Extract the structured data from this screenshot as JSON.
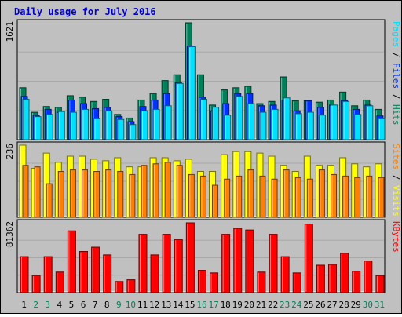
{
  "chart_data": [
    {
      "type": "bar",
      "title": "Daily usage for July 2016",
      "panel": "top",
      "ymax_label": "1621",
      "categories": [
        "1",
        "2",
        "3",
        "4",
        "5",
        "6",
        "7",
        "8",
        "9",
        "10",
        "11",
        "12",
        "13",
        "14",
        "15",
        "16",
        "17",
        "18",
        "19",
        "20",
        "21",
        "22",
        "23",
        "24",
        "25",
        "26",
        "27",
        "28",
        "29",
        "30",
        "31"
      ],
      "weekend_days": [
        "2",
        "3",
        "9",
        "10",
        "16",
        "17",
        "23",
        "24",
        "30",
        "31"
      ],
      "series": [
        {
          "name": "Hits",
          "color": "#00805A",
          "values": [
            720,
            380,
            460,
            450,
            610,
            590,
            530,
            560,
            350,
            300,
            550,
            640,
            820,
            900,
            1621,
            900,
            480,
            690,
            720,
            740,
            500,
            530,
            870,
            540,
            540,
            520,
            550,
            660,
            470,
            550,
            420
          ]
        },
        {
          "name": "Files",
          "color": "#0033FF",
          "values": [
            600,
            340,
            420,
            380,
            550,
            500,
            430,
            450,
            320,
            250,
            460,
            550,
            640,
            790,
            1300,
            590,
            400,
            500,
            640,
            640,
            470,
            480,
            550,
            400,
            540,
            450,
            480,
            540,
            420,
            480,
            330
          ]
        },
        {
          "name": "Pages",
          "color": "#00E0FF",
          "values": [
            560,
            320,
            350,
            390,
            380,
            420,
            290,
            400,
            280,
            210,
            400,
            420,
            470,
            780,
            1290,
            560,
            450,
            340,
            600,
            500,
            380,
            420,
            580,
            360,
            380,
            340,
            480,
            530,
            350,
            470,
            290
          ]
        }
      ],
      "legend": [
        "Pages",
        "Files",
        "Hits"
      ],
      "legend_separator": " / ",
      "legend_placement": "right"
    },
    {
      "type": "bar",
      "panel": "middle",
      "ymax_label": "236",
      "categories": [
        "1",
        "2",
        "3",
        "4",
        "5",
        "6",
        "7",
        "8",
        "9",
        "10",
        "11",
        "12",
        "13",
        "14",
        "15",
        "16",
        "17",
        "18",
        "19",
        "20",
        "21",
        "22",
        "23",
        "24",
        "25",
        "26",
        "27",
        "28",
        "29",
        "30",
        "31"
      ],
      "series": [
        {
          "name": "Visits",
          "color": "#FFFF00",
          "values": [
            236,
            160,
            210,
            180,
            200,
            200,
            190,
            185,
            195,
            165,
            165,
            195,
            195,
            185,
            190,
            150,
            150,
            205,
            215,
            215,
            210,
            200,
            170,
            150,
            200,
            170,
            170,
            195,
            175,
            165,
            175
          ]
        },
        {
          "name": "Sites",
          "color": "#FF8000",
          "values": [
            170,
            165,
            110,
            150,
            155,
            155,
            150,
            155,
            150,
            140,
            170,
            175,
            180,
            170,
            140,
            135,
            105,
            125,
            135,
            155,
            135,
            125,
            155,
            130,
            125,
            155,
            140,
            135,
            130,
            135,
            130
          ]
        }
      ],
      "legend": [
        "Sites",
        "Visits"
      ],
      "legend_separator": " / ",
      "legend_placement": "right"
    },
    {
      "type": "bar",
      "panel": "bottom",
      "ymax_label": "81362",
      "categories": [
        "1",
        "2",
        "3",
        "4",
        "5",
        "6",
        "7",
        "8",
        "9",
        "10",
        "11",
        "12",
        "13",
        "14",
        "15",
        "16",
        "17",
        "18",
        "19",
        "20",
        "21",
        "22",
        "23",
        "24",
        "25",
        "26",
        "27",
        "28",
        "29",
        "30",
        "31"
      ],
      "series": [
        {
          "name": "KBytes",
          "color": "#FF0000",
          "values": [
            42000,
            20000,
            42000,
            24000,
            72000,
            48000,
            53000,
            44000,
            13000,
            15000,
            68000,
            44000,
            68000,
            62000,
            81362,
            26000,
            23000,
            68000,
            75000,
            73000,
            24000,
            68000,
            42000,
            23000,
            80000,
            32000,
            33000,
            46000,
            25000,
            37000,
            20000
          ]
        }
      ],
      "legend": [
        "KBytes"
      ],
      "legend_placement": "right"
    }
  ]
}
